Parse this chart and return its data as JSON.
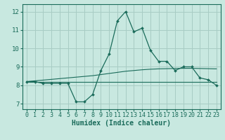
{
  "xlabel": "Humidex (Indice chaleur)",
  "background_color": "#c8e8e0",
  "grid_color": "#a8ccc4",
  "line_color": "#1a6b5a",
  "x_values": [
    0,
    1,
    2,
    3,
    4,
    5,
    6,
    7,
    8,
    9,
    10,
    11,
    12,
    13,
    14,
    15,
    16,
    17,
    18,
    19,
    20,
    21,
    22,
    23
  ],
  "y_main": [
    8.2,
    8.2,
    8.1,
    8.1,
    8.1,
    8.1,
    7.1,
    7.1,
    7.5,
    8.8,
    9.7,
    11.5,
    12.0,
    10.9,
    11.1,
    9.9,
    9.3,
    9.3,
    8.8,
    9.0,
    9.0,
    8.4,
    8.3,
    8.0
  ],
  "y_trend_flat": [
    8.2,
    8.2,
    8.2,
    8.2,
    8.2,
    8.2,
    8.2,
    8.2,
    8.2,
    8.2,
    8.2,
    8.2,
    8.2,
    8.2,
    8.2,
    8.2,
    8.2,
    8.2,
    8.2,
    8.2,
    8.2,
    8.2,
    8.2,
    8.2
  ],
  "y_trend_rise": [
    8.2,
    8.24,
    8.28,
    8.32,
    8.36,
    8.4,
    8.44,
    8.48,
    8.52,
    8.58,
    8.64,
    8.7,
    8.76,
    8.8,
    8.84,
    8.87,
    8.89,
    8.9,
    8.91,
    8.92,
    8.92,
    8.91,
    8.9,
    8.89
  ],
  "ylim": [
    6.7,
    12.4
  ],
  "xlim": [
    -0.5,
    23.5
  ],
  "yticks": [
    7,
    8,
    9,
    10,
    11,
    12
  ],
  "xticks": [
    0,
    1,
    2,
    3,
    4,
    5,
    6,
    7,
    8,
    9,
    10,
    11,
    12,
    13,
    14,
    15,
    16,
    17,
    18,
    19,
    20,
    21,
    22,
    23
  ],
  "tick_fontsize": 6,
  "label_fontsize": 7
}
